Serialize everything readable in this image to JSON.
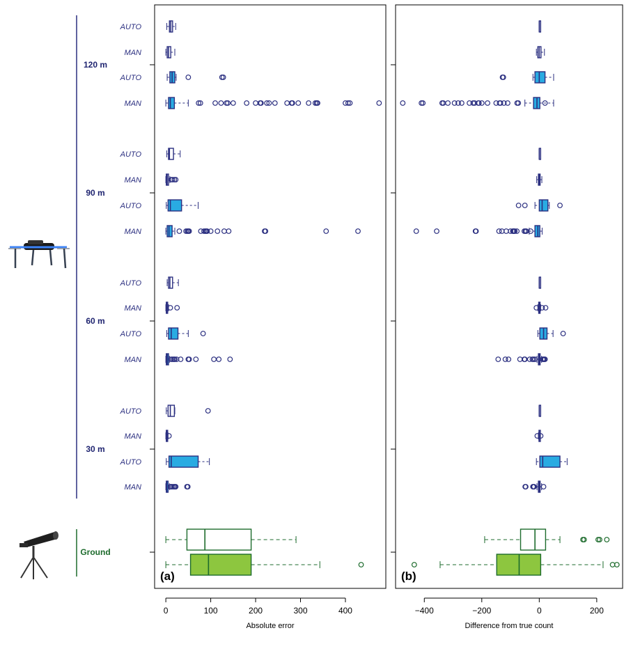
{
  "colors": {
    "uav": "#2b2f80",
    "uav_fill": "#29abe2",
    "ground": "#1d6b2c",
    "ground_fill": "#8dc63f"
  },
  "icons": {
    "uav": "drone-icon",
    "ground": "spotting-scope-icon"
  },
  "chart_data": [
    {
      "type": "box",
      "panel_label": "(a)",
      "xlabel": "Absolute error",
      "xlim": [
        -25,
        490
      ],
      "xticks": [
        0,
        100,
        200,
        300,
        400
      ],
      "groups": [
        {
          "label": "120 m",
          "rows": [
            "AUTO",
            "MAN",
            "AUTO",
            "MAN"
          ]
        },
        {
          "label": "90 m",
          "rows": [
            "AUTO",
            "MAN",
            "AUTO",
            "MAN"
          ]
        },
        {
          "label": "60 m",
          "rows": [
            "AUTO",
            "MAN",
            "AUTO",
            "MAN"
          ]
        },
        {
          "label": "30 m",
          "rows": [
            "AUTO",
            "MAN",
            "AUTO",
            "MAN"
          ]
        },
        {
          "label": "Ground",
          "rows": [
            "",
            ""
          ]
        }
      ],
      "boxes": [
        {
          "group": "120 m",
          "method": "AUTO",
          "filled": false,
          "min": 2,
          "q1": 8,
          "median": 11,
          "q3": 15,
          "max": 22,
          "outliers": []
        },
        {
          "group": "120 m",
          "method": "MAN",
          "filled": false,
          "min": 0,
          "q1": 3,
          "median": 6,
          "q3": 11,
          "max": 20,
          "outliers": []
        },
        {
          "group": "120 m",
          "method": "AUTO",
          "filled": true,
          "min": 3,
          "q1": 9,
          "median": 14,
          "q3": 20,
          "max": 23,
          "outliers": [
            50,
            125,
            128
          ]
        },
        {
          "group": "120 m",
          "method": "MAN",
          "filled": true,
          "min": 0,
          "q1": 6,
          "median": 10,
          "q3": 19,
          "max": 50,
          "outliers": [
            73,
            77,
            110,
            123,
            135,
            138,
            150,
            180,
            200,
            210,
            212,
            225,
            230,
            243,
            270,
            280,
            282,
            295,
            318,
            333,
            336,
            338,
            400,
            406,
            410,
            475
          ]
        }
      ],
      "boxes_more": [
        {
          "group": "90 m",
          "method": "AUTO",
          "filled": false,
          "min": 2,
          "q1": 6,
          "median": 8,
          "q3": 17,
          "max": 32,
          "outliers": []
        },
        {
          "group": "90 m",
          "method": "MAN",
          "filled": false,
          "min": 0,
          "q1": 1,
          "median": 3,
          "q3": 6,
          "max": 9,
          "outliers": [
            12,
            15,
            19,
            22
          ]
        },
        {
          "group": "90 m",
          "method": "AUTO",
          "filled": true,
          "min": 1,
          "q1": 5,
          "median": 10,
          "q3": 35,
          "max": 72,
          "outliers": []
        },
        {
          "group": "90 m",
          "method": "MAN",
          "filled": true,
          "min": 0,
          "q1": 3,
          "median": 7,
          "q3": 14,
          "max": 20,
          "outliers": [
            30,
            45,
            48,
            50,
            52,
            78,
            85,
            88,
            90,
            92,
            100,
            115,
            130,
            140,
            220,
            222,
            357,
            428
          ]
        },
        {
          "group": "60 m",
          "method": "AUTO",
          "filled": false,
          "min": 3,
          "q1": 6,
          "median": 9,
          "q3": 15,
          "max": 28,
          "outliers": []
        },
        {
          "group": "60 m",
          "method": "MAN",
          "filled": false,
          "min": 0,
          "q1": 1,
          "median": 2,
          "q3": 4,
          "max": 6,
          "outliers": [
            10,
            25
          ]
        },
        {
          "group": "60 m",
          "method": "AUTO",
          "filled": true,
          "min": 2,
          "q1": 6,
          "median": 12,
          "q3": 27,
          "max": 50,
          "outliers": [
            83
          ]
        },
        {
          "group": "60 m",
          "method": "MAN",
          "filled": true,
          "min": 0,
          "q1": 1,
          "median": 3,
          "q3": 6,
          "max": 8,
          "outliers": [
            12,
            15,
            18,
            20,
            24,
            33,
            50,
            52,
            67,
            107,
            118,
            143
          ]
        },
        {
          "group": "30 m",
          "method": "AUTO",
          "filled": false,
          "min": 1,
          "q1": 5,
          "median": 10,
          "q3": 19,
          "max": 20,
          "outliers": [
            94
          ]
        },
        {
          "group": "30 m",
          "method": "MAN",
          "filled": false,
          "min": 0,
          "q1": 1,
          "median": 2,
          "q3": 3,
          "max": 5,
          "outliers": [
            7
          ]
        },
        {
          "group": "30 m",
          "method": "AUTO",
          "filled": true,
          "min": 1,
          "q1": 7,
          "median": 12,
          "q3": 72,
          "max": 97,
          "outliers": []
        },
        {
          "group": "30 m",
          "method": "MAN",
          "filled": true,
          "min": 0,
          "q1": 1,
          "median": 2,
          "q3": 5,
          "max": 8,
          "outliers": [
            10,
            12,
            15,
            18,
            20,
            22,
            47,
            49
          ]
        },
        {
          "group": "Ground",
          "method": "",
          "filled": false,
          "min": 0,
          "q1": 47,
          "median": 87,
          "q3": 190,
          "max": 290,
          "outliers": []
        },
        {
          "group": "Ground",
          "method": "",
          "filled": true,
          "min": 0,
          "q1": 55,
          "median": 95,
          "q3": 190,
          "max": 343,
          "outliers": [
            435
          ]
        }
      ]
    },
    {
      "type": "box",
      "panel_label": "(b)",
      "xlabel": "Difference from true count",
      "xlim": [
        -500,
        290
      ],
      "xticks": [
        -400,
        -200,
        0,
        200
      ],
      "boxes": [
        {
          "group": "120 m",
          "method": "AUTO",
          "filled": false,
          "min": 0,
          "q1": 0,
          "median": 0,
          "q3": 2,
          "max": 3,
          "outliers": []
        },
        {
          "group": "120 m",
          "method": "MAN",
          "filled": false,
          "min": -10,
          "q1": -5,
          "median": 0,
          "q3": 6,
          "max": 18,
          "outliers": []
        },
        {
          "group": "120 m",
          "method": "AUTO",
          "filled": true,
          "min": -22,
          "q1": -15,
          "median": 0,
          "q3": 20,
          "max": 50,
          "outliers": [
            -128,
            -125
          ]
        },
        {
          "group": "120 m",
          "method": "MAN",
          "filled": true,
          "min": -50,
          "q1": -20,
          "median": -8,
          "q3": 2,
          "max": 50,
          "outliers": [
            -475,
            -410,
            -405,
            -338,
            -334,
            -318,
            -295,
            -282,
            -270,
            -243,
            -230,
            -225,
            -212,
            -210,
            -200,
            -180,
            -150,
            -138,
            -135,
            -123,
            -110,
            -77,
            -73,
            20
          ]
        }
      ],
      "boxes_more": [
        {
          "group": "90 m",
          "method": "AUTO",
          "filled": false,
          "min": 0,
          "q1": 0,
          "median": 0,
          "q3": 2,
          "max": 3,
          "outliers": []
        },
        {
          "group": "90 m",
          "method": "MAN",
          "filled": false,
          "min": -9,
          "q1": -3,
          "median": 0,
          "q3": 3,
          "max": 9,
          "outliers": []
        },
        {
          "group": "90 m",
          "method": "AUTO",
          "filled": true,
          "min": -15,
          "q1": 0,
          "median": 10,
          "q3": 30,
          "max": 35,
          "outliers": [
            -72,
            -50,
            72
          ]
        },
        {
          "group": "90 m",
          "method": "MAN",
          "filled": true,
          "min": -35,
          "q1": -15,
          "median": -5,
          "q3": 2,
          "max": 10,
          "outliers": [
            -428,
            -357,
            -222,
            -220,
            -140,
            -130,
            -115,
            -100,
            -92,
            -90,
            -88,
            -85,
            -78,
            -52,
            -48,
            -45,
            -30
          ]
        },
        {
          "group": "60 m",
          "method": "AUTO",
          "filled": false,
          "min": 0,
          "q1": 0,
          "median": 0,
          "q3": 2,
          "max": 3,
          "outliers": []
        },
        {
          "group": "60 m",
          "method": "MAN",
          "filled": false,
          "min": -5,
          "q1": -2,
          "median": 0,
          "q3": 2,
          "max": 5,
          "outliers": [
            -10,
            10,
            22
          ]
        },
        {
          "group": "60 m",
          "method": "AUTO",
          "filled": true,
          "min": -5,
          "q1": 2,
          "median": 15,
          "q3": 27,
          "max": 48,
          "outliers": [
            83
          ]
        },
        {
          "group": "60 m",
          "method": "MAN",
          "filled": true,
          "min": -8,
          "q1": -3,
          "median": 0,
          "q3": 3,
          "max": 8,
          "outliers": [
            -143,
            -118,
            -107,
            -67,
            -52,
            -50,
            -33,
            -24,
            -20,
            -15,
            12,
            15,
            18,
            20
          ]
        },
        {
          "group": "30 m",
          "method": "AUTO",
          "filled": false,
          "min": 0,
          "q1": 0,
          "median": 0,
          "q3": 2,
          "max": 3,
          "outliers": []
        },
        {
          "group": "30 m",
          "method": "MAN",
          "filled": false,
          "min": -3,
          "q1": -1,
          "median": 0,
          "q3": 1,
          "max": 3,
          "outliers": [
            -7,
            5
          ]
        },
        {
          "group": "30 m",
          "method": "AUTO",
          "filled": true,
          "min": -10,
          "q1": 2,
          "median": 12,
          "q3": 72,
          "max": 97,
          "outliers": []
        },
        {
          "group": "30 m",
          "method": "MAN",
          "filled": true,
          "min": -8,
          "q1": -3,
          "median": 0,
          "q3": 3,
          "max": 8,
          "outliers": [
            -49,
            -47,
            -22,
            -20,
            -18,
            15
          ]
        },
        {
          "group": "Ground",
          "method": "",
          "filled": false,
          "min": -190,
          "q1": -65,
          "median": -15,
          "q3": 22,
          "max": 72,
          "outliers": [
            152,
            156,
            205,
            210,
            235
          ]
        },
        {
          "group": "Ground",
          "method": "",
          "filled": true,
          "min": -345,
          "q1": -148,
          "median": -70,
          "q3": 5,
          "max": 222,
          "outliers": [
            -435,
            255,
            270
          ]
        }
      ]
    }
  ]
}
